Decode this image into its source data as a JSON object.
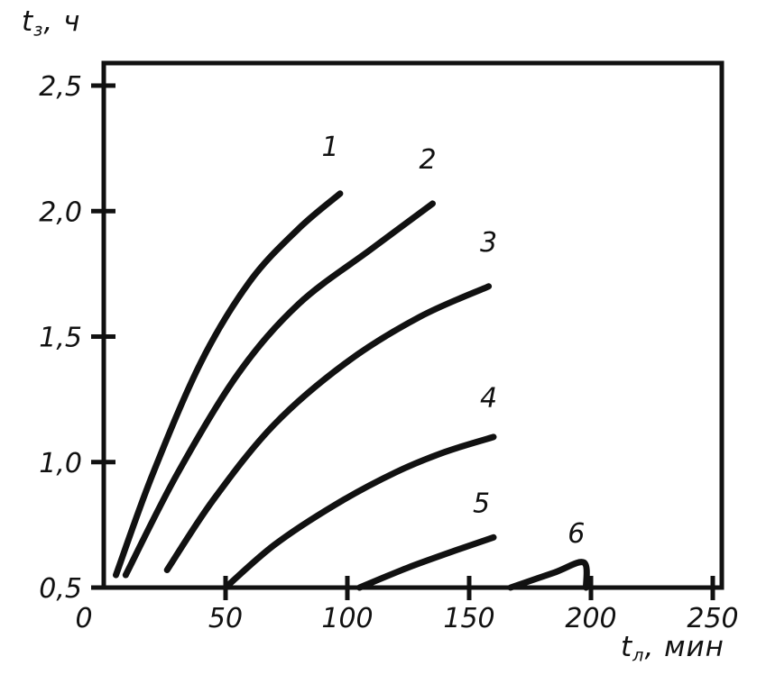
{
  "figure": {
    "background": "#ffffff",
    "ink_color": "#111111"
  },
  "chart_data": {
    "type": "line",
    "title": "",
    "ylabel": {
      "symbol": "t",
      "subscript": "з",
      "unit": ", ч"
    },
    "xlabel": {
      "symbol": "t",
      "subscript": "л",
      "unit": ", мин"
    },
    "xlim": [
      0,
      250
    ],
    "ylim": [
      0.5,
      2.5
    ],
    "grid": false,
    "legend": "numbers at curve ends",
    "x_ticks": [
      {
        "v": 0,
        "label": "0"
      },
      {
        "v": 50,
        "label": "50"
      },
      {
        "v": 100,
        "label": "100"
      },
      {
        "v": 150,
        "label": "150"
      },
      {
        "v": 200,
        "label": "200"
      },
      {
        "v": 250,
        "label": "250"
      }
    ],
    "y_ticks": [
      {
        "v": 0.5,
        "label": "0,5"
      },
      {
        "v": 1.0,
        "label": "1,0"
      },
      {
        "v": 1.5,
        "label": "1,5"
      },
      {
        "v": 2.0,
        "label": "2,0"
      },
      {
        "v": 2.5,
        "label": "2,5"
      }
    ],
    "series": [
      {
        "name": "curve-1",
        "label": "1",
        "label_at": [
          93,
          2.22
        ],
        "points": [
          [
            5,
            0.55
          ],
          [
            20,
            0.95
          ],
          [
            40,
            1.4
          ],
          [
            60,
            1.72
          ],
          [
            80,
            1.93
          ],
          [
            97,
            2.07
          ]
        ]
      },
      {
        "name": "curve-2",
        "label": "2",
        "label_at": [
          133,
          2.17
        ],
        "points": [
          [
            9,
            0.55
          ],
          [
            30,
            0.95
          ],
          [
            55,
            1.35
          ],
          [
            80,
            1.63
          ],
          [
            110,
            1.85
          ],
          [
            135,
            2.03
          ]
        ]
      },
      {
        "name": "curve-3",
        "label": "3",
        "label_at": [
          158,
          1.84
        ],
        "points": [
          [
            26,
            0.57
          ],
          [
            45,
            0.85
          ],
          [
            70,
            1.15
          ],
          [
            100,
            1.4
          ],
          [
            130,
            1.58
          ],
          [
            158,
            1.7
          ]
        ]
      },
      {
        "name": "curve-4",
        "label": "4",
        "label_at": [
          158,
          1.22
        ],
        "points": [
          [
            50,
            0.5
          ],
          [
            70,
            0.67
          ],
          [
            95,
            0.83
          ],
          [
            120,
            0.96
          ],
          [
            140,
            1.04
          ],
          [
            160,
            1.1
          ]
        ]
      },
      {
        "name": "curve-5",
        "label": "5",
        "label_at": [
          155,
          0.8
        ],
        "points": [
          [
            105,
            0.5
          ],
          [
            125,
            0.58
          ],
          [
            145,
            0.65
          ],
          [
            160,
            0.7
          ]
        ]
      },
      {
        "name": "curve-6",
        "label": "6",
        "label_at": [
          194,
          0.68
        ],
        "points": [
          [
            167,
            0.5
          ],
          [
            185,
            0.56
          ],
          [
            197,
            0.6
          ],
          [
            198,
            0.5
          ]
        ]
      }
    ]
  }
}
